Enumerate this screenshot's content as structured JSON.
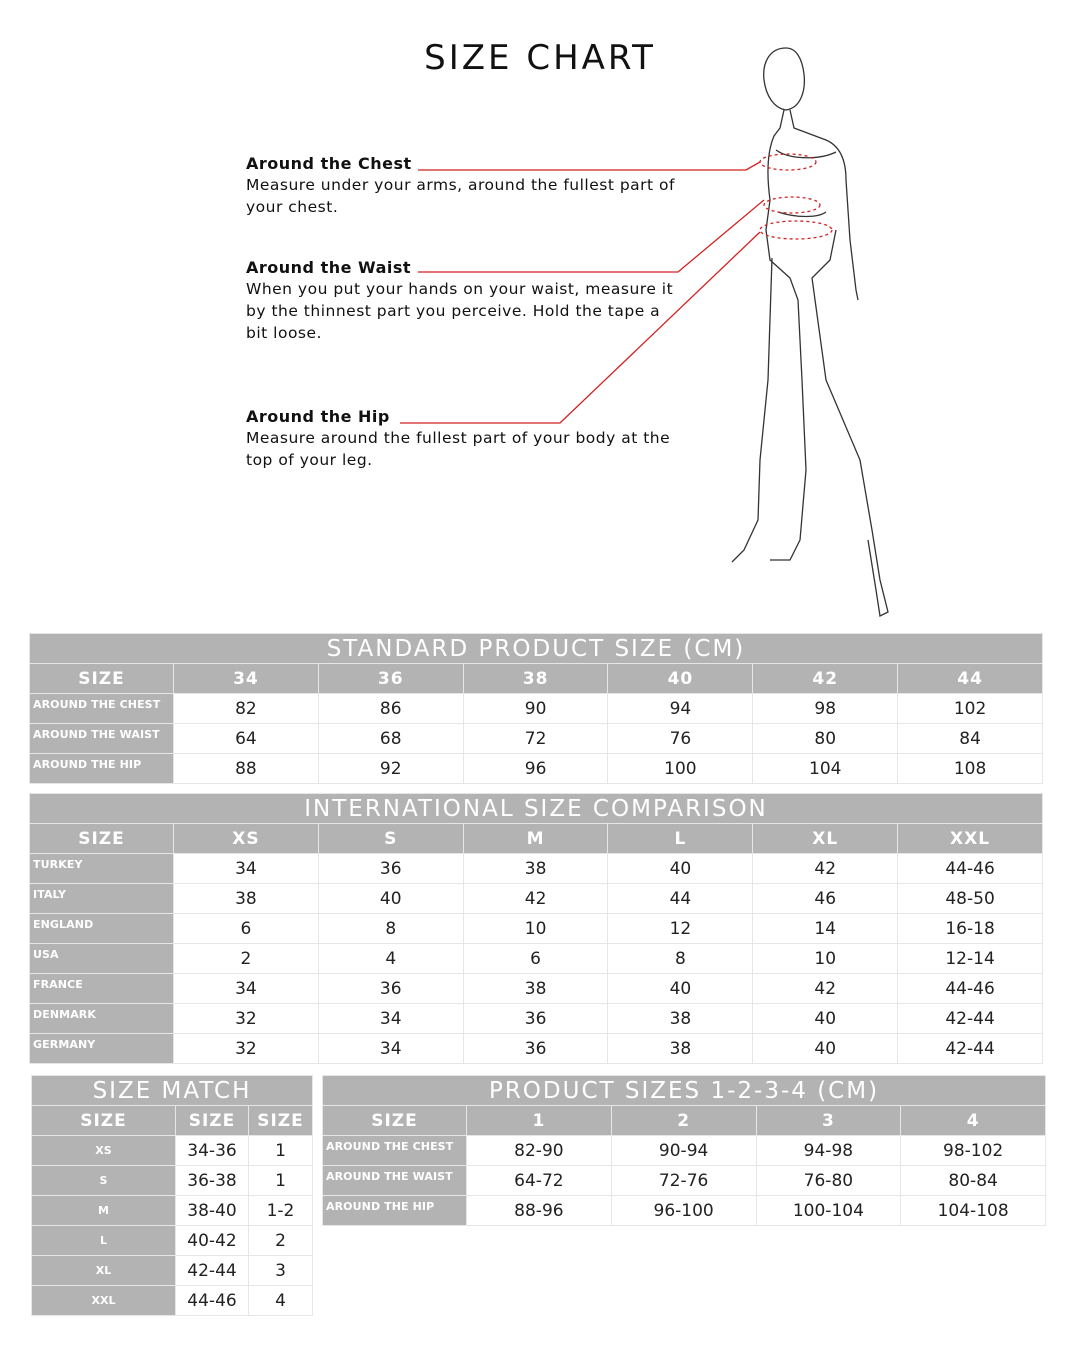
{
  "title": "SIZE CHART",
  "annotations": [
    {
      "heading": "Around the Chest",
      "text": "Measure under your arms, around the fullest part of your chest."
    },
    {
      "heading": "Around the Waist",
      "text": "When you put your hands on your waist, measure it by the thinnest part you perceive. Hold the tape a bit loose."
    },
    {
      "heading": "Around the Hip",
      "text": "Measure around the fullest part of your body at the top of your leg."
    }
  ],
  "accent_color": "#d42020",
  "header_color": "#b3b3b3",
  "standard": {
    "title": "STANDARD PRODUCT SIZE (CM)",
    "headers": [
      "SIZE",
      "34",
      "36",
      "38",
      "40",
      "42",
      "44"
    ],
    "rows": [
      [
        "AROUND THE CHEST",
        "82",
        "86",
        "90",
        "94",
        "98",
        "102"
      ],
      [
        "AROUND THE WAIST",
        "64",
        "68",
        "72",
        "76",
        "80",
        "84"
      ],
      [
        "AROUND THE HIP",
        "88",
        "92",
        "96",
        "100",
        "104",
        "108"
      ]
    ]
  },
  "international": {
    "title": "INTERNATIONAL SIZE COMPARISON",
    "headers": [
      "SIZE",
      "XS",
      "S",
      "M",
      "L",
      "XL",
      "XXL"
    ],
    "rows": [
      [
        "TURKEY",
        "34",
        "36",
        "38",
        "40",
        "42",
        "44-46"
      ],
      [
        "ITALY",
        "38",
        "40",
        "42",
        "44",
        "46",
        "48-50"
      ],
      [
        "ENGLAND",
        "6",
        "8",
        "10",
        "12",
        "14",
        "16-18"
      ],
      [
        "USA",
        "2",
        "4",
        "6",
        "8",
        "10",
        "12-14"
      ],
      [
        "FRANCE",
        "34",
        "36",
        "38",
        "40",
        "42",
        "44-46"
      ],
      [
        "DENMARK",
        "32",
        "34",
        "36",
        "38",
        "40",
        "42-44"
      ],
      [
        "GERMANY",
        "32",
        "34",
        "36",
        "38",
        "40",
        "42-44"
      ]
    ]
  },
  "size_match": {
    "title": "SIZE MATCH",
    "headers": [
      "SIZE",
      "SIZE",
      "SIZE"
    ],
    "rows": [
      [
        "XS",
        "34-36",
        "1"
      ],
      [
        "S",
        "36-38",
        "1"
      ],
      [
        "M",
        "38-40",
        "1-2"
      ],
      [
        "L",
        "40-42",
        "2"
      ],
      [
        "XL",
        "42-44",
        "3"
      ],
      [
        "XXL",
        "44-46",
        "4"
      ]
    ]
  },
  "product": {
    "title": "PRODUCT SIZES 1-2-3-4 (CM)",
    "headers": [
      "SIZE",
      "1",
      "2",
      "3",
      "4"
    ],
    "rows": [
      [
        "AROUND THE CHEST",
        "82-90",
        "90-94",
        "94-98",
        "98-102"
      ],
      [
        "AROUND THE WAIST",
        "64-72",
        "72-76",
        "76-80",
        "80-84"
      ],
      [
        "AROUND THE HIP",
        "88-96",
        "96-100",
        "100-104",
        "104-108"
      ]
    ]
  }
}
